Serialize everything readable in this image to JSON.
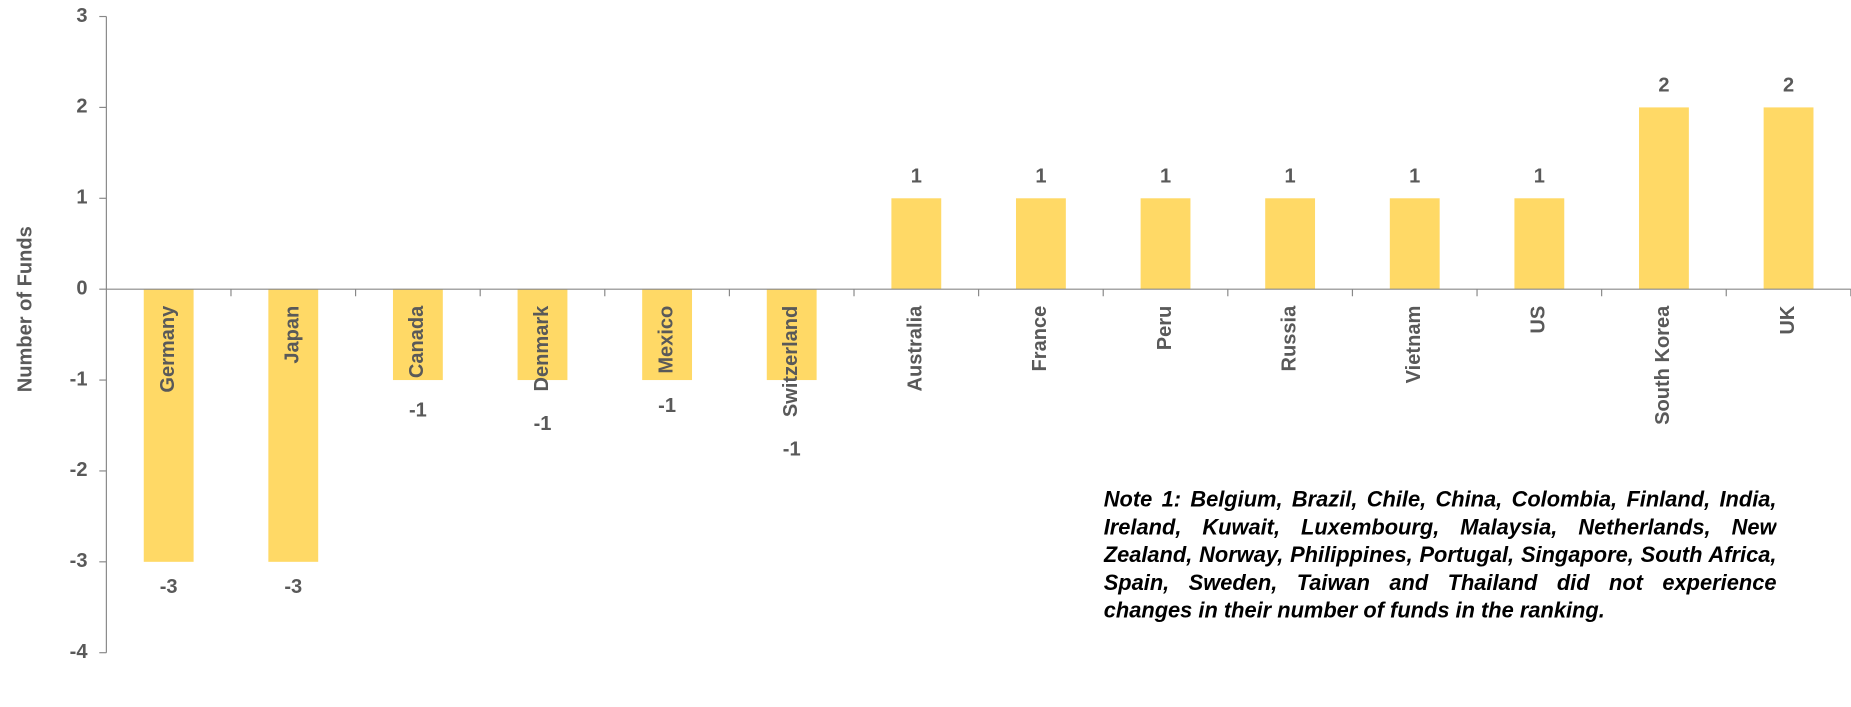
{
  "chart_data": {
    "type": "bar",
    "y_label": "Number of Funds",
    "categories": [
      "Germany",
      "Japan",
      "Canada",
      "Denmark",
      "Mexico",
      "Switzerland",
      "Australia",
      "France",
      "Peru",
      "Russia",
      "Vietnam",
      "US",
      "South Korea",
      "UK"
    ],
    "values": [
      -3,
      -3,
      -1,
      -1,
      -1,
      -1,
      1,
      1,
      1,
      1,
      1,
      1,
      2,
      2
    ],
    "color": "#FFD966",
    "ylim": [
      -4,
      3
    ],
    "yticks": [
      -4,
      -3,
      -2,
      -1,
      0,
      1,
      2,
      3
    ],
    "annotation": "Note 1: Belgium, Brazil, Chile, China, Colombia, Finland, India, Ireland, Kuwait, Luxembourg, Malaysia, Netherlands, New Zealand, Norway, Philippines, Portugal, Singapore, South Africa, Spain, Sweden, Taiwan and Thailand did not experience changes in their number of funds in the ranking."
  }
}
